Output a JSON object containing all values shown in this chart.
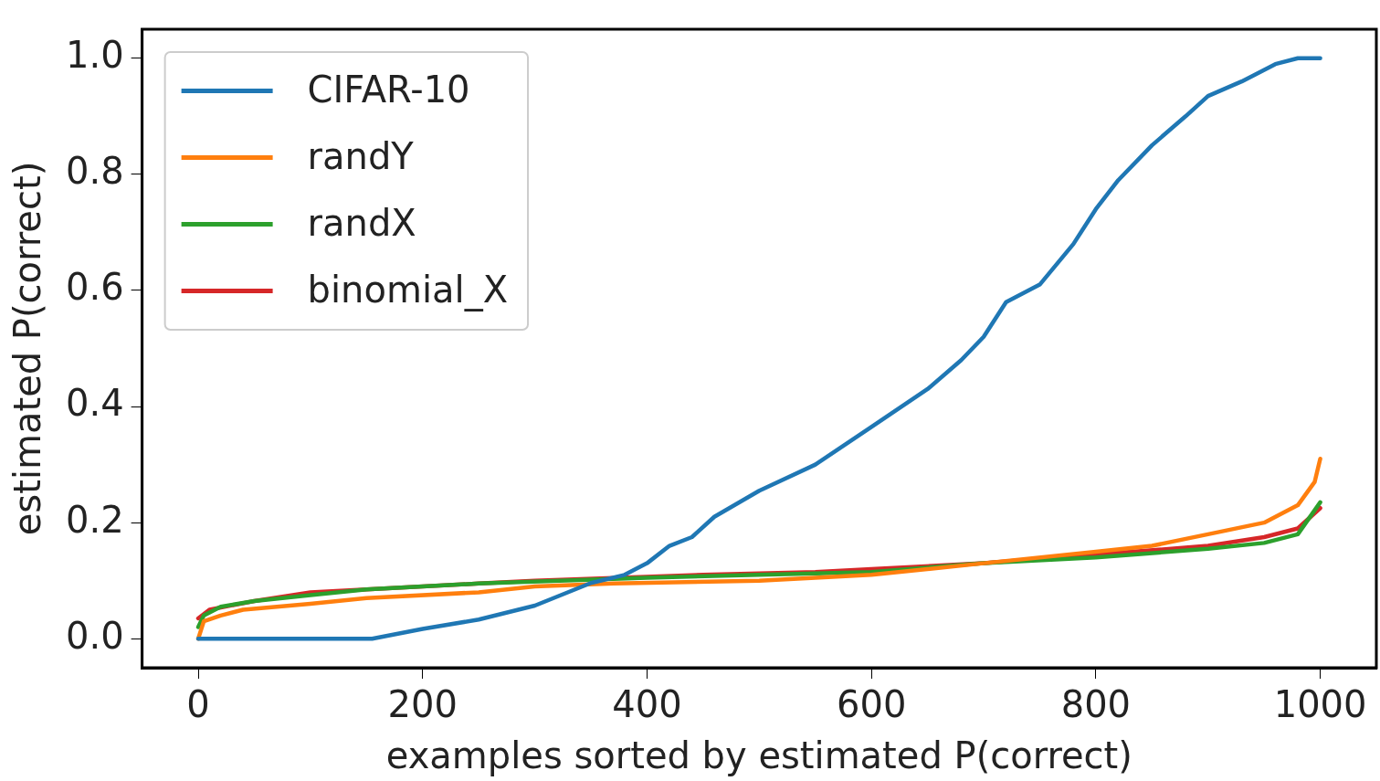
{
  "chart_data": {
    "type": "line",
    "xlabel": "examples sorted by estimated P(correct)",
    "ylabel": "estimated P(correct)",
    "xlim": [
      -50,
      1050
    ],
    "ylim": [
      -0.05,
      1.05
    ],
    "xticks": [
      0,
      200,
      400,
      600,
      800,
      1000
    ],
    "yticks": [
      {
        "value": 0,
        "label": "0.0"
      },
      {
        "value": 0.2,
        "label": "0.2"
      },
      {
        "value": 0.4,
        "label": "0.4"
      },
      {
        "value": 0.6,
        "label": "0.6"
      },
      {
        "value": 0.8,
        "label": "0.8"
      },
      {
        "value": 1,
        "label": "1.0"
      }
    ],
    "grid": false,
    "legend": "top left",
    "marker": "none",
    "line_style": "solid",
    "series": [
      {
        "name": "CIFAR-10",
        "color": "#1f77b4",
        "x": [
          0,
          155,
          200,
          250,
          300,
          350,
          380,
          400,
          420,
          440,
          460,
          500,
          550,
          600,
          650,
          680,
          700,
          720,
          750,
          780,
          800,
          820,
          850,
          880,
          900,
          930,
          960,
          980,
          1000
        ],
        "values": [
          0,
          0,
          0.017,
          0.033,
          0.057,
          0.096,
          0.11,
          0.13,
          0.16,
          0.175,
          0.21,
          0.255,
          0.3,
          0.365,
          0.43,
          0.48,
          0.52,
          0.58,
          0.61,
          0.68,
          0.74,
          0.79,
          0.85,
          0.9,
          0.935,
          0.96,
          0.99,
          1.0,
          1.0
        ]
      },
      {
        "name": "randY",
        "color": "#ff7f0e",
        "x": [
          0,
          5,
          20,
          40,
          100,
          150,
          250,
          300,
          370,
          500,
          600,
          700,
          800,
          850,
          900,
          950,
          980,
          995,
          1000
        ],
        "values": [
          0,
          0.03,
          0.04,
          0.05,
          0.06,
          0.07,
          0.08,
          0.09,
          0.095,
          0.1,
          0.11,
          0.13,
          0.15,
          0.16,
          0.18,
          0.2,
          0.23,
          0.27,
          0.31
        ]
      },
      {
        "name": "randX",
        "color": "#2ca02c",
        "x": [
          0,
          5,
          20,
          50,
          100,
          150,
          250,
          400,
          500,
          600,
          700,
          800,
          900,
          950,
          980,
          1000
        ],
        "values": [
          0.02,
          0.04,
          0.055,
          0.065,
          0.075,
          0.085,
          0.095,
          0.105,
          0.11,
          0.115,
          0.13,
          0.14,
          0.155,
          0.165,
          0.18,
          0.235
        ]
      },
      {
        "name": "binomial_X",
        "color": "#d62728",
        "x": [
          0,
          10,
          50,
          100,
          150,
          250,
          300,
          450,
          550,
          600,
          700,
          800,
          900,
          950,
          980,
          1000
        ],
        "values": [
          0.035,
          0.05,
          0.065,
          0.08,
          0.085,
          0.095,
          0.1,
          0.11,
          0.115,
          0.12,
          0.13,
          0.145,
          0.16,
          0.175,
          0.19,
          0.225
        ]
      }
    ]
  }
}
